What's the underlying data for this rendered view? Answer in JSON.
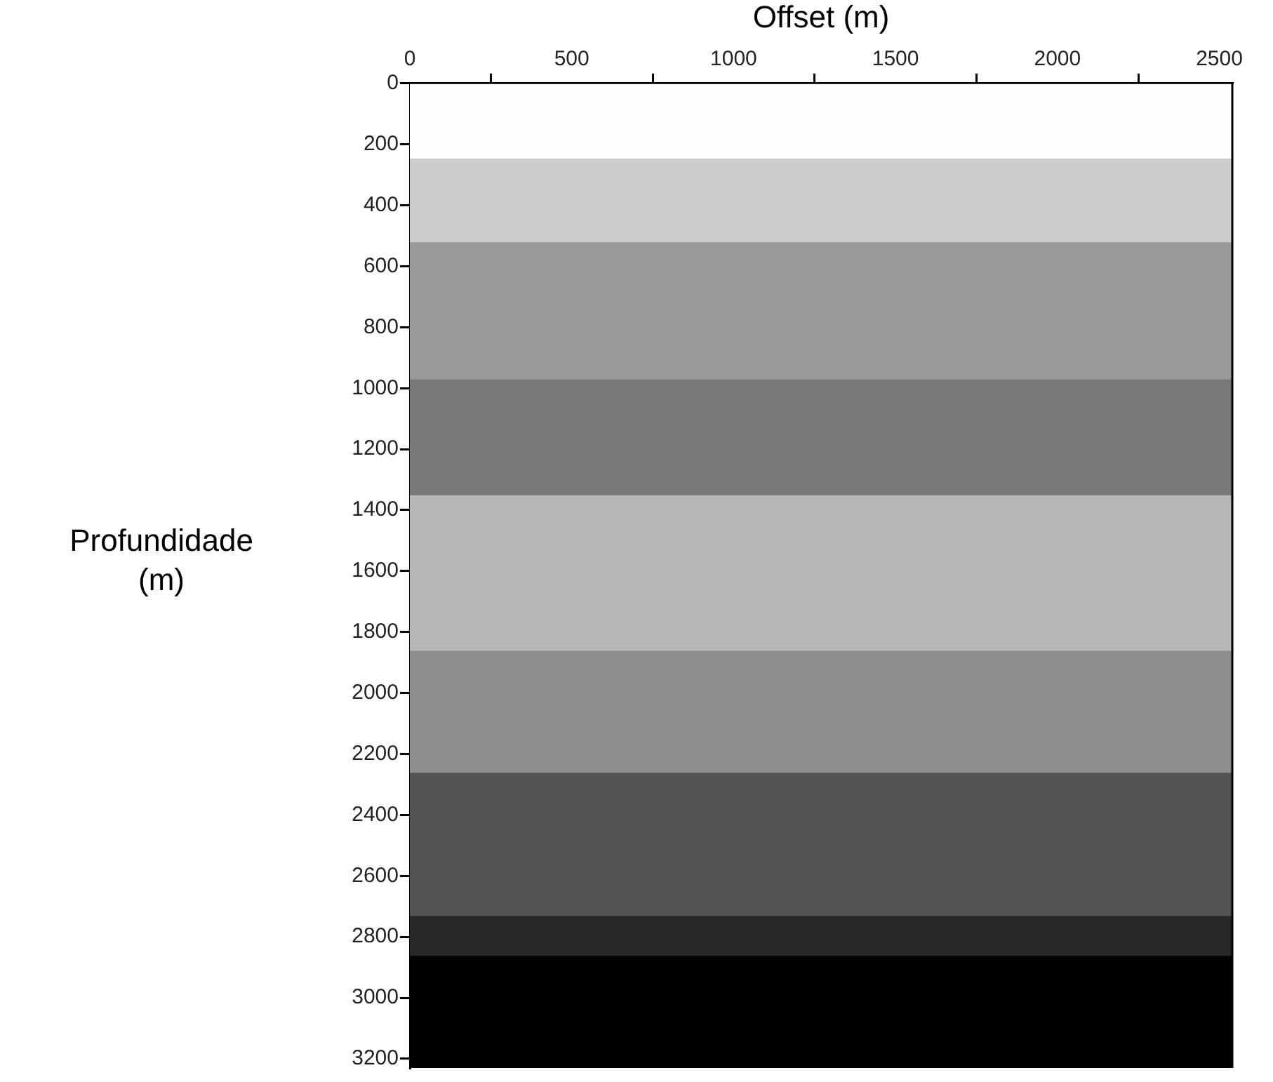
{
  "chart_data": {
    "type": "bar",
    "stacked": true,
    "ylabel": "Profundidade (m)",
    "x2label": "Offset (m)",
    "categories": [
      null
    ],
    "x2lim": [
      0,
      2540
    ],
    "x2ticks": [
      0,
      500,
      1000,
      1500,
      2000,
      2500
    ],
    "ylim": [
      3230,
      0
    ],
    "yticks": [
      0,
      200,
      400,
      600,
      800,
      1000,
      1200,
      1400,
      1600,
      1800,
      2000,
      2200,
      2400,
      2600,
      2800,
      3000,
      3200
    ],
    "series": [
      {
        "color": "#fdfdfd",
        "values": [
          245
        ]
      },
      {
        "color": "#cccccc",
        "values": [
          275
        ]
      },
      {
        "color": "#999999",
        "values": [
          450
        ]
      },
      {
        "color": "#7a7a7a",
        "values": [
          380
        ]
      },
      {
        "color": "#b7b7b7",
        "values": [
          510
        ]
      },
      {
        "color": "#8e8e8e",
        "values": [
          400
        ]
      },
      {
        "color": "#535353",
        "values": [
          470
        ]
      },
      {
        "color": "#282828",
        "values": [
          130
        ]
      },
      {
        "color": "#000000",
        "values": [
          370
        ]
      }
    ]
  }
}
